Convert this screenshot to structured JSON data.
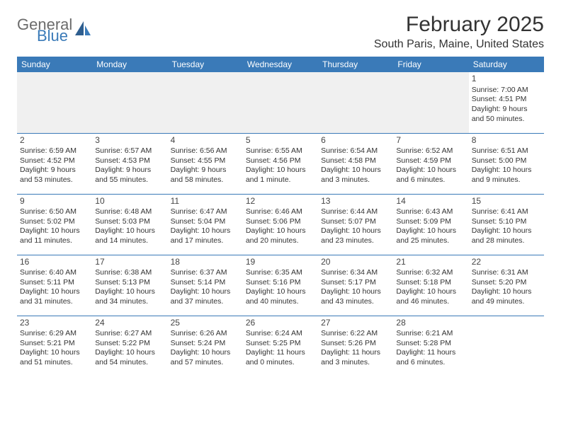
{
  "logo": {
    "text1": "General",
    "text2": "Blue"
  },
  "title": "February 2025",
  "location": "South Paris, Maine, United States",
  "colors": {
    "header_bg": "#3a7ab8",
    "header_fg": "#ffffff",
    "border": "#3a7ab8",
    "empty_bg": "#f0f0f0",
    "text": "#333333"
  },
  "weekdays": [
    "Sunday",
    "Monday",
    "Tuesday",
    "Wednesday",
    "Thursday",
    "Friday",
    "Saturday"
  ],
  "weeks": [
    [
      null,
      null,
      null,
      null,
      null,
      null,
      {
        "n": "1",
        "sr": "7:00 AM",
        "ss": "4:51 PM",
        "dl": "9 hours and 50 minutes."
      }
    ],
    [
      {
        "n": "2",
        "sr": "6:59 AM",
        "ss": "4:52 PM",
        "dl": "9 hours and 53 minutes."
      },
      {
        "n": "3",
        "sr": "6:57 AM",
        "ss": "4:53 PM",
        "dl": "9 hours and 55 minutes."
      },
      {
        "n": "4",
        "sr": "6:56 AM",
        "ss": "4:55 PM",
        "dl": "9 hours and 58 minutes."
      },
      {
        "n": "5",
        "sr": "6:55 AM",
        "ss": "4:56 PM",
        "dl": "10 hours and 1 minute."
      },
      {
        "n": "6",
        "sr": "6:54 AM",
        "ss": "4:58 PM",
        "dl": "10 hours and 3 minutes."
      },
      {
        "n": "7",
        "sr": "6:52 AM",
        "ss": "4:59 PM",
        "dl": "10 hours and 6 minutes."
      },
      {
        "n": "8",
        "sr": "6:51 AM",
        "ss": "5:00 PM",
        "dl": "10 hours and 9 minutes."
      }
    ],
    [
      {
        "n": "9",
        "sr": "6:50 AM",
        "ss": "5:02 PM",
        "dl": "10 hours and 11 minutes."
      },
      {
        "n": "10",
        "sr": "6:48 AM",
        "ss": "5:03 PM",
        "dl": "10 hours and 14 minutes."
      },
      {
        "n": "11",
        "sr": "6:47 AM",
        "ss": "5:04 PM",
        "dl": "10 hours and 17 minutes."
      },
      {
        "n": "12",
        "sr": "6:46 AM",
        "ss": "5:06 PM",
        "dl": "10 hours and 20 minutes."
      },
      {
        "n": "13",
        "sr": "6:44 AM",
        "ss": "5:07 PM",
        "dl": "10 hours and 23 minutes."
      },
      {
        "n": "14",
        "sr": "6:43 AM",
        "ss": "5:09 PM",
        "dl": "10 hours and 25 minutes."
      },
      {
        "n": "15",
        "sr": "6:41 AM",
        "ss": "5:10 PM",
        "dl": "10 hours and 28 minutes."
      }
    ],
    [
      {
        "n": "16",
        "sr": "6:40 AM",
        "ss": "5:11 PM",
        "dl": "10 hours and 31 minutes."
      },
      {
        "n": "17",
        "sr": "6:38 AM",
        "ss": "5:13 PM",
        "dl": "10 hours and 34 minutes."
      },
      {
        "n": "18",
        "sr": "6:37 AM",
        "ss": "5:14 PM",
        "dl": "10 hours and 37 minutes."
      },
      {
        "n": "19",
        "sr": "6:35 AM",
        "ss": "5:16 PM",
        "dl": "10 hours and 40 minutes."
      },
      {
        "n": "20",
        "sr": "6:34 AM",
        "ss": "5:17 PM",
        "dl": "10 hours and 43 minutes."
      },
      {
        "n": "21",
        "sr": "6:32 AM",
        "ss": "5:18 PM",
        "dl": "10 hours and 46 minutes."
      },
      {
        "n": "22",
        "sr": "6:31 AM",
        "ss": "5:20 PM",
        "dl": "10 hours and 49 minutes."
      }
    ],
    [
      {
        "n": "23",
        "sr": "6:29 AM",
        "ss": "5:21 PM",
        "dl": "10 hours and 51 minutes."
      },
      {
        "n": "24",
        "sr": "6:27 AM",
        "ss": "5:22 PM",
        "dl": "10 hours and 54 minutes."
      },
      {
        "n": "25",
        "sr": "6:26 AM",
        "ss": "5:24 PM",
        "dl": "10 hours and 57 minutes."
      },
      {
        "n": "26",
        "sr": "6:24 AM",
        "ss": "5:25 PM",
        "dl": "11 hours and 0 minutes."
      },
      {
        "n": "27",
        "sr": "6:22 AM",
        "ss": "5:26 PM",
        "dl": "11 hours and 3 minutes."
      },
      {
        "n": "28",
        "sr": "6:21 AM",
        "ss": "5:28 PM",
        "dl": "11 hours and 6 minutes."
      },
      null
    ]
  ],
  "labels": {
    "sunrise": "Sunrise:",
    "sunset": "Sunset:",
    "daylight": "Daylight:"
  }
}
